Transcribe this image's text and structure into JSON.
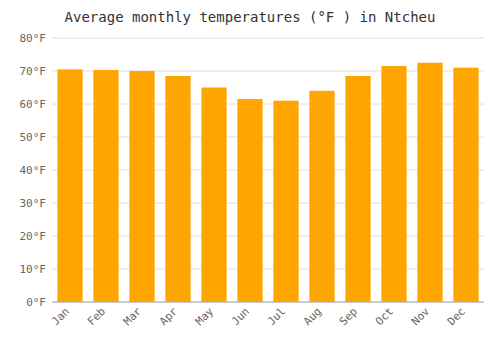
{
  "chart_data": {
    "type": "bar",
    "title": "Average monthly temperatures (°F ) in Ntcheu",
    "categories": [
      "Jan",
      "Feb",
      "Mar",
      "Apr",
      "May",
      "Jun",
      "Jul",
      "Aug",
      "Sep",
      "Oct",
      "Nov",
      "Dec"
    ],
    "values": [
      70.5,
      70.3,
      70.0,
      68.5,
      65.0,
      61.5,
      61.0,
      64.0,
      68.5,
      71.5,
      72.5,
      71.0
    ],
    "color": "#FFA500",
    "ylim": [
      0,
      80
    ],
    "yticks": [
      {
        "value": 0,
        "label": "0°F"
      },
      {
        "value": 10,
        "label": "10°F"
      },
      {
        "value": 20,
        "label": "20°F"
      },
      {
        "value": 30,
        "label": "30°F"
      },
      {
        "value": 40,
        "label": "40°F"
      },
      {
        "value": 50,
        "label": "50°F"
      },
      {
        "value": 60,
        "label": "60°F"
      },
      {
        "value": 70,
        "label": "70°F"
      },
      {
        "value": 80,
        "label": "80°F"
      }
    ],
    "grid": true
  }
}
